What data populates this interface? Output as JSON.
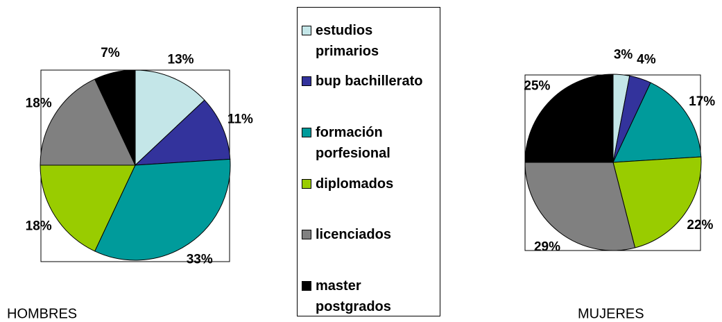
{
  "chart_data": [
    {
      "type": "pie",
      "title": "HOMBRES",
      "categories": [
        "estudios primarios",
        "bup bachillerato",
        "formación porfesional",
        "diplomados",
        "licenciados",
        "master postgrados"
      ],
      "values": [
        13,
        11,
        33,
        18,
        18,
        7
      ],
      "value_labels": [
        "13%",
        "11%",
        "33%",
        "18%",
        "18%",
        "7%"
      ],
      "colors": [
        "#c4e6e8",
        "#33339c",
        "#009b9b",
        "#99cc00",
        "#808080",
        "#000000"
      ]
    },
    {
      "type": "pie",
      "title": "MUJERES",
      "values": [
        3,
        4,
        17,
        22,
        29,
        25
      ],
      "value_labels": [
        "3%",
        "4%",
        "17%",
        "22%",
        "29%",
        "25%"
      ],
      "colors": [
        "#c4e6e8",
        "#33339c",
        "#009b9b",
        "#99cc00",
        "#808080",
        "#000000"
      ]
    }
  ]
}
